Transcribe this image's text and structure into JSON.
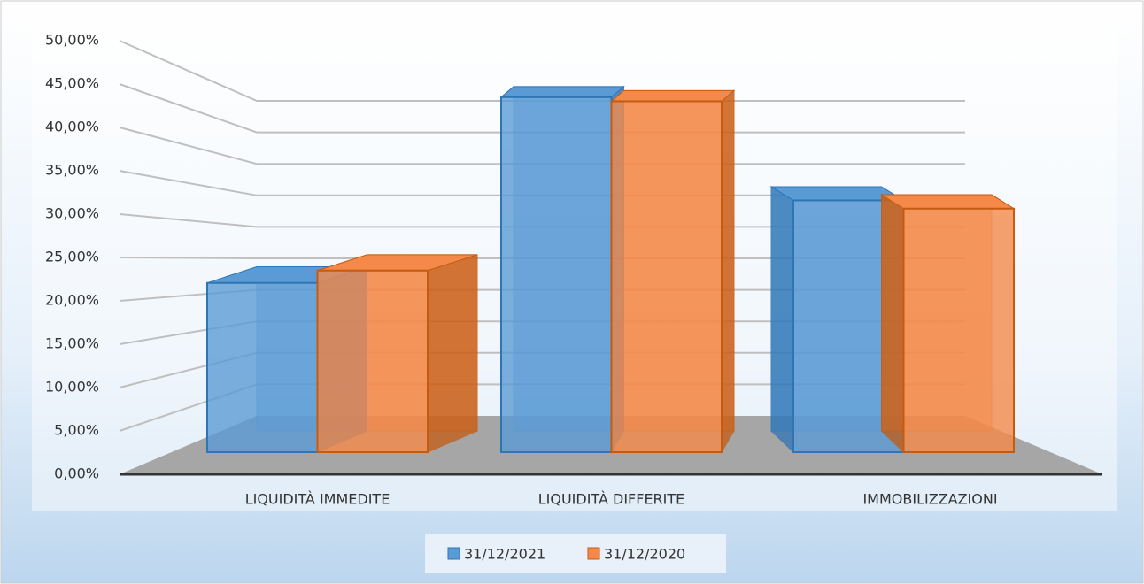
{
  "chart_data": {
    "type": "bar3d",
    "categories": [
      "LIQUIDITÀ IMMEDITE",
      "LIQUIDITÀ DIFFERITE",
      "IMMOBILIZZAZIONI"
    ],
    "series": [
      {
        "name": "31/12/2021",
        "color": "#5b9bd5",
        "values": [
          20.5,
          43,
          30.5
        ]
      },
      {
        "name": "31/12/2020",
        "color": "#f4894a",
        "values": [
          22,
          42.5,
          29.5
        ]
      }
    ],
    "ylim": [
      0,
      50
    ],
    "yticks": [
      {
        "value": 0,
        "label": "0,00%"
      },
      {
        "value": 5,
        "label": "5,00%"
      },
      {
        "value": 10,
        "label": "10,00%"
      },
      {
        "value": 15,
        "label": "15,00%"
      },
      {
        "value": 20,
        "label": "20,00%"
      },
      {
        "value": 25,
        "label": "25,00%"
      },
      {
        "value": 30,
        "label": "30,00%"
      },
      {
        "value": 35,
        "label": "35,00%"
      },
      {
        "value": 40,
        "label": "40,00%"
      },
      {
        "value": 45,
        "label": "45,00%"
      },
      {
        "value": 50,
        "label": "50,00%"
      }
    ],
    "grid": true,
    "legend": "bottom"
  }
}
